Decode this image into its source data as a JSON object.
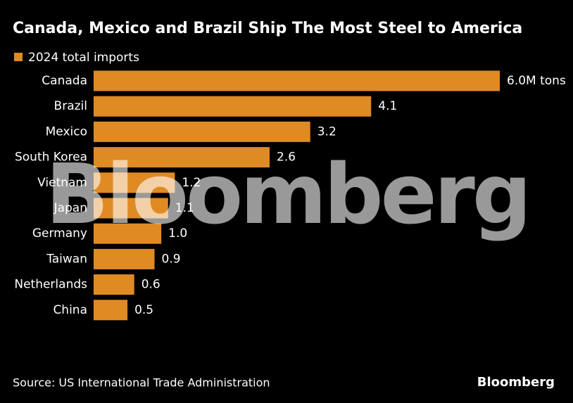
{
  "chart_data": {
    "type": "bar",
    "orientation": "horizontal",
    "title": "Canada, Mexico and Brazil Ship The Most Steel to America",
    "series": [
      {
        "name": "2024 total imports",
        "color": "#e08a24",
        "values": [
          6.0,
          4.1,
          3.2,
          2.6,
          1.2,
          1.1,
          1.0,
          0.9,
          0.6,
          0.5
        ],
        "value_labels": [
          "6.0M tons",
          "4.1",
          "3.2",
          "2.6",
          "1.2",
          "1.1",
          "1.0",
          "0.9",
          "0.6",
          "0.5"
        ]
      }
    ],
    "categories": [
      "Canada",
      "Brazil",
      "Mexico",
      "South Korea",
      "Vietnam",
      "Japan",
      "Germany",
      "Taiwan",
      "Netherlands",
      "China"
    ],
    "watermark": "Bloomberg",
    "source": "Source: US International Trade Administration",
    "logo": "Bloomberg"
  }
}
